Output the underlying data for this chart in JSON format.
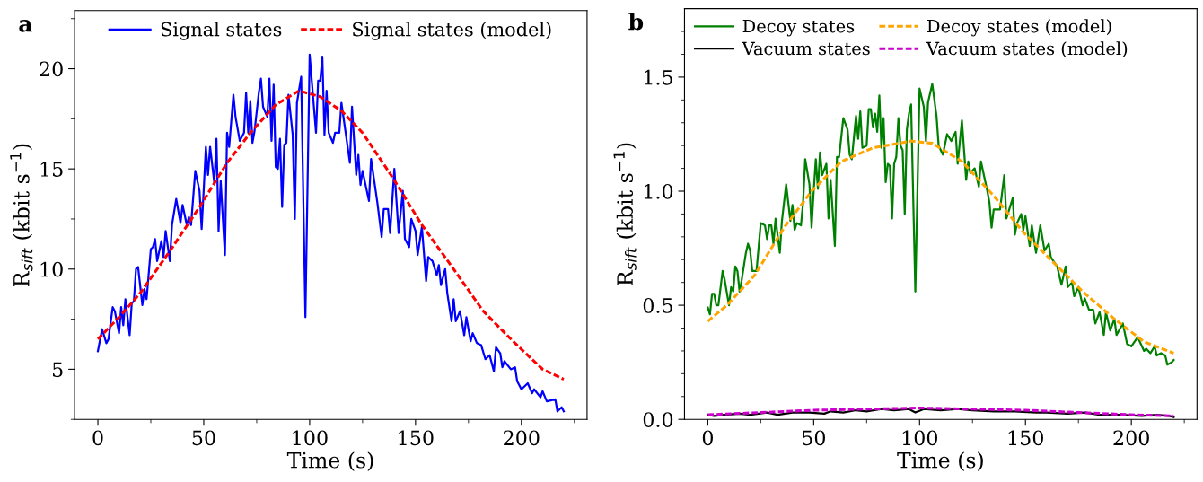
{
  "chart_data": [
    {
      "type": "line",
      "annotations": [
        "a"
      ],
      "xlabel": "Time (s)",
      "ylabel": "R$_{sift}$ (kbit s$^{−1}$)",
      "legend": "top",
      "grid": false,
      "xlim": [
        -11,
        231
      ],
      "xticks": [
        0,
        {
          "value": 25,
          "label": null
        },
        50,
        {
          "value": 75,
          "label": null
        },
        100,
        {
          "value": 125,
          "label": null
        },
        150,
        {
          "value": 175,
          "label": null
        },
        200,
        {
          "value": 225,
          "label": null
        }
      ],
      "ylim": [
        2.5,
        22.9
      ],
      "yticks": [
        {
          "value": 2.5,
          "label": null
        },
        5,
        {
          "value": 7.5,
          "label": null
        },
        10,
        {
          "value": 12.5,
          "label": null
        },
        15,
        {
          "value": 17.5,
          "label": null
        },
        20,
        {
          "value": 22.5,
          "label": null
        }
      ],
      "series": [
        {
          "name": "Signal states",
          "color": "#0000ff",
          "line_style": "solid",
          "x": [
            0,
            2,
            4,
            5,
            7,
            8,
            10,
            11,
            12,
            13,
            15,
            16,
            17,
            18,
            19,
            21,
            22,
            23,
            25,
            26,
            27,
            28,
            30,
            31,
            32,
            34,
            35,
            37,
            39,
            40,
            42,
            43,
            44,
            46,
            48,
            49,
            50,
            51,
            52,
            53,
            55,
            56,
            57,
            58,
            60,
            61,
            62,
            64,
            65,
            67,
            69,
            70,
            71,
            72,
            73,
            74,
            76,
            77,
            78,
            80,
            81,
            82,
            83,
            84,
            85,
            86,
            87,
            88,
            89,
            90,
            92,
            93,
            94,
            96,
            98,
            100,
            101,
            103,
            104,
            105,
            106,
            107,
            108,
            109,
            111,
            112,
            114,
            115,
            119,
            120,
            122,
            123,
            124,
            125,
            128,
            129,
            132,
            134,
            135,
            137,
            138,
            140,
            142,
            144,
            145,
            147,
            148,
            150,
            151,
            153,
            155,
            156,
            158,
            160,
            161,
            162,
            164,
            165,
            167,
            168,
            169,
            171,
            173,
            174,
            176,
            177,
            179,
            181,
            183,
            185,
            187,
            188,
            190,
            191,
            192,
            195,
            197,
            198,
            200,
            203,
            205,
            206,
            209,
            210,
            212,
            216,
            217,
            219,
            220
          ],
          "values": [
            5.9,
            7.0,
            6.3,
            6.5,
            8.1,
            7.9,
            6.8,
            8.1,
            7.2,
            8.5,
            6.7,
            8.3,
            8.4,
            10.0,
            10.1,
            8.2,
            9.0,
            8.5,
            11.0,
            11.1,
            11.5,
            10.4,
            11.4,
            10.6,
            11.9,
            10.4,
            12.2,
            13.5,
            12.3,
            13.2,
            12.2,
            12.6,
            12.2,
            14.9,
            13.9,
            12.0,
            14.0,
            16.1,
            14.7,
            16.1,
            14.3,
            16.5,
            11.9,
            14.4,
            10.7,
            16.8,
            16.1,
            18.7,
            17.6,
            16.4,
            16.8,
            18.8,
            16.8,
            18.4,
            16.3,
            16.9,
            18.8,
            19.5,
            18.1,
            17.6,
            19.5,
            16.4,
            19.2,
            15.1,
            15.0,
            16.5,
            13.1,
            16.2,
            16.3,
            18.7,
            16.7,
            12.5,
            18.3,
            19.6,
            7.6,
            20.7,
            19.4,
            16.8,
            19.4,
            19.4,
            20.6,
            16.7,
            18.9,
            16.8,
            16.3,
            16.8,
            16.8,
            18.3,
            15.3,
            18.1,
            14.7,
            15.7,
            14.2,
            14.9,
            13.4,
            15.5,
            13.3,
            11.6,
            13.0,
            13.0,
            11.8,
            15.0,
            11.8,
            13.9,
            11.5,
            11.1,
            12.5,
            11.9,
            10.7,
            12.1,
            9.4,
            10.6,
            10.4,
            9.7,
            10.2,
            9.2,
            10.0,
            8.8,
            7.4,
            8.5,
            7.4,
            7.9,
            6.7,
            7.6,
            6.4,
            6.8,
            6.3,
            6.2,
            5.5,
            5.7,
            4.9,
            6.1,
            5.8,
            5.1,
            5.4,
            5.0,
            5.1,
            4.4,
            4.0,
            4.3,
            3.8,
            4.0,
            3.6,
            3.9,
            3.4,
            3.5,
            2.9,
            3.1,
            2.9
          ]
        },
        {
          "name": "Signal states (model)",
          "color": "#ff0000",
          "line_style": "dashed",
          "x": [
            0,
            10,
            20,
            34,
            48,
            61,
            72,
            84,
            95,
            105,
            115,
            125,
            139,
            153,
            168,
            182,
            196,
            210,
            220
          ],
          "values": [
            6.5,
            7.6,
            8.8,
            10.9,
            13.1,
            15.3,
            16.8,
            18.2,
            18.9,
            18.6,
            17.9,
            16.8,
            14.6,
            12.2,
            10.0,
            7.9,
            6.4,
            5.0,
            4.5
          ]
        }
      ]
    },
    {
      "type": "line",
      "annotations": [
        "b"
      ],
      "xlabel": "Time (s)",
      "ylabel": "R$_{sift}$ (kbit s$^{−1}$)",
      "legend": "top left",
      "grid": false,
      "xlim": [
        -11,
        231
      ],
      "xticks": [
        0,
        {
          "value": 25,
          "label": null
        },
        50,
        {
          "value": 75,
          "label": null
        },
        100,
        {
          "value": 125,
          "label": null
        },
        150,
        {
          "value": 175,
          "label": null
        },
        200,
        {
          "value": 225,
          "label": null
        }
      ],
      "ylim": [
        0,
        1.8
      ],
      "yticks": [
        {
          "value": 0,
          "label": "0.0"
        },
        {
          "value": 0.1,
          "label": null
        },
        {
          "value": 0.2,
          "label": null
        },
        {
          "value": 0.3,
          "label": null
        },
        {
          "value": 0.4,
          "label": null
        },
        0.5,
        {
          "value": 0.6,
          "label": null
        },
        {
          "value": 0.7,
          "label": null
        },
        {
          "value": 0.8,
          "label": null
        },
        {
          "value": 0.9,
          "label": null
        },
        {
          "value": 1,
          "label": "1.0"
        },
        {
          "value": 1.1,
          "label": null
        },
        {
          "value": 1.2,
          "label": null
        },
        {
          "value": 1.3,
          "label": null
        },
        {
          "value": 1.4,
          "label": null
        },
        1.5,
        {
          "value": 1.6,
          "label": null
        },
        {
          "value": 1.7,
          "label": null
        }
      ],
      "series": [
        {
          "name": "Decoy states",
          "color": "#008000",
          "line_style": "solid",
          "x": [
            0,
            1,
            2,
            3,
            4,
            5,
            7,
            8,
            10,
            11,
            12,
            13,
            14,
            15,
            16,
            18,
            19,
            20,
            21,
            23,
            25,
            27,
            28,
            29,
            30,
            31,
            32,
            34,
            35,
            37,
            39,
            40,
            41,
            42,
            44,
            45,
            46,
            48,
            49,
            50,
            51,
            52,
            53,
            54,
            56,
            57,
            58,
            60,
            61,
            62,
            64,
            66,
            67,
            68,
            70,
            71,
            72,
            73,
            75,
            76,
            77,
            78,
            79,
            80,
            81,
            82,
            83,
            84,
            85,
            86,
            87,
            88,
            89,
            90,
            91,
            92,
            93,
            94,
            95,
            96,
            98,
            100,
            102,
            103,
            104,
            106,
            108,
            109,
            111,
            113,
            115,
            117,
            118,
            120,
            122,
            123,
            124,
            126,
            128,
            129,
            132,
            133,
            134,
            135,
            138,
            140,
            141,
            144,
            145,
            146,
            148,
            149,
            150,
            152,
            153,
            155,
            157,
            159,
            161,
            162,
            165,
            167,
            169,
            170,
            172,
            173,
            175,
            177,
            178,
            180,
            182,
            183,
            185,
            187,
            188,
            190,
            192,
            193,
            196,
            198,
            200,
            203,
            206,
            207,
            209,
            211,
            212,
            214,
            216,
            217,
            219,
            220
          ],
          "values": [
            0.49,
            0.46,
            0.55,
            0.55,
            0.5,
            0.5,
            0.65,
            0.61,
            0.5,
            0.58,
            0.56,
            0.67,
            0.65,
            0.56,
            0.61,
            0.73,
            0.77,
            0.74,
            0.65,
            0.65,
            0.86,
            0.85,
            0.79,
            0.85,
            0.85,
            0.77,
            0.88,
            0.73,
            0.87,
            1.03,
            0.87,
            0.94,
            0.83,
            0.86,
            0.85,
            0.95,
            1.14,
            1.03,
            0.84,
            1.0,
            1.14,
            1.01,
            1.17,
            1.07,
            1.12,
            0.88,
            1.05,
            0.76,
            1.15,
            1.15,
            1.32,
            1.27,
            1.16,
            1.14,
            1.33,
            1.23,
            1.35,
            1.19,
            1.2,
            1.36,
            1.36,
            1.28,
            1.34,
            1.26,
            1.42,
            1.19,
            1.32,
            1.04,
            1.12,
            1.11,
            0.88,
            1.12,
            1.15,
            1.32,
            1.2,
            1.18,
            0.9,
            1.27,
            1.34,
            1.38,
            0.56,
            1.45,
            1.37,
            1.22,
            1.39,
            1.47,
            1.33,
            1.2,
            1.16,
            1.25,
            1.22,
            1.26,
            1.12,
            1.31,
            1.05,
            1.13,
            1.08,
            1.1,
            1.02,
            1.13,
            1.0,
            0.95,
            0.84,
            0.92,
            0.92,
            1.07,
            0.88,
            0.97,
            0.81,
            0.86,
            0.9,
            0.83,
            0.89,
            0.76,
            0.85,
            0.73,
            0.85,
            0.74,
            0.77,
            0.71,
            0.67,
            0.59,
            0.67,
            0.58,
            0.6,
            0.54,
            0.58,
            0.5,
            0.53,
            0.48,
            0.48,
            0.42,
            0.47,
            0.37,
            0.47,
            0.39,
            0.44,
            0.37,
            0.42,
            0.33,
            0.32,
            0.36,
            0.3,
            0.31,
            0.29,
            0.32,
            0.28,
            0.29,
            0.28,
            0.24,
            0.25,
            0.26
          ]
        },
        {
          "name": "Vacuum states",
          "color": "#000000",
          "line_style": "solid",
          "x": [
            0,
            3,
            8,
            15,
            20,
            28,
            33,
            40,
            48,
            55,
            58,
            64,
            70,
            75,
            82,
            88,
            95,
            98,
            102,
            110,
            118,
            125,
            135,
            145,
            155,
            160,
            170,
            178,
            185,
            195,
            205,
            212,
            218,
            220
          ],
          "values": [
            0.02,
            0.015,
            0.02,
            0.025,
            0.02,
            0.03,
            0.02,
            0.03,
            0.03,
            0.025,
            0.035,
            0.03,
            0.04,
            0.035,
            0.045,
            0.04,
            0.045,
            0.03,
            0.045,
            0.04,
            0.045,
            0.04,
            0.035,
            0.035,
            0.03,
            0.03,
            0.025,
            0.03,
            0.02,
            0.02,
            0.015,
            0.02,
            0.015,
            0.01
          ]
        },
        {
          "name": "Decoy states (model)",
          "color": "#ffa500",
          "line_style": "dashed",
          "x": [
            0,
            9,
            22,
            36,
            49,
            63,
            78,
            96,
            106,
            120,
            135,
            149,
            163,
            177,
            192,
            206,
            220
          ],
          "values": [
            0.43,
            0.5,
            0.63,
            0.84,
            1.0,
            1.13,
            1.19,
            1.22,
            1.21,
            1.13,
            0.98,
            0.82,
            0.69,
            0.56,
            0.44,
            0.34,
            0.29
          ]
        },
        {
          "name": "Vacuum states (model)",
          "color": "#cc00cc",
          "line_style": "dashed",
          "x": [
            0,
            25,
            50,
            75,
            100,
            125,
            150,
            175,
            200,
            220
          ],
          "values": [
            0.02,
            0.03,
            0.04,
            0.045,
            0.05,
            0.045,
            0.04,
            0.03,
            0.02,
            0.015
          ]
        }
      ]
    }
  ]
}
